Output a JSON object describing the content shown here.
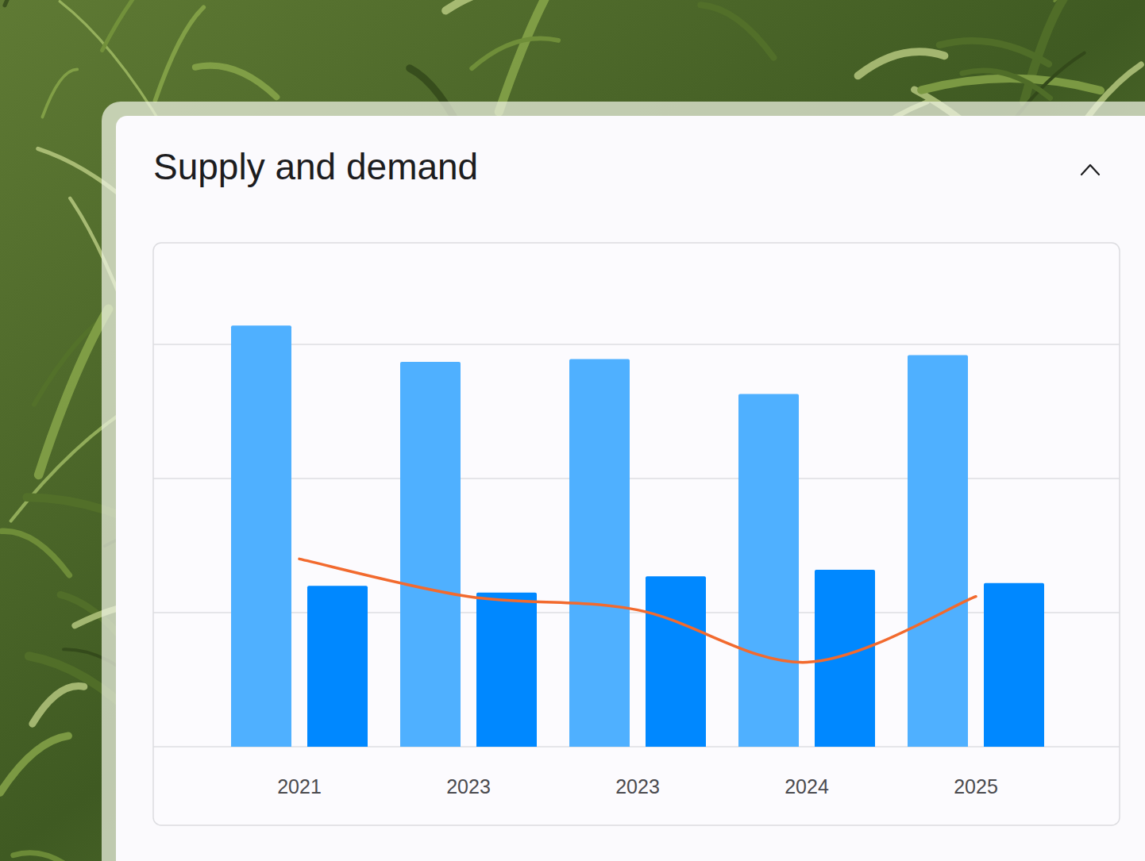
{
  "chart_data": {
    "type": "bar",
    "title": "Supply and demand",
    "categories": [
      "2021",
      "2023",
      "2023",
      "2024",
      "2025"
    ],
    "series": [
      {
        "type": "bar",
        "color": "#4FB0FF",
        "values": [
          31.4,
          28.7,
          28.9,
          26.3,
          29.2
        ]
      },
      {
        "type": "bar",
        "color": "#0088FF",
        "values": [
          12.0,
          11.5,
          12.7,
          13.2,
          12.2
        ]
      },
      {
        "type": "line",
        "color": "#F26A2E",
        "values": [
          14.0,
          11.2,
          10.2,
          6.3,
          11.2
        ]
      }
    ],
    "ylim": [
      0,
      36
    ],
    "yticks": [
      0,
      10,
      20,
      30
    ],
    "grid": true,
    "tick_labels": "x"
  }
}
